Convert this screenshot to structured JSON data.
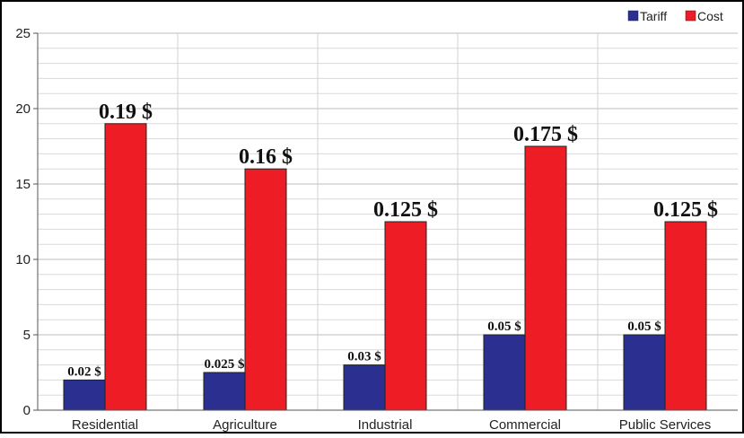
{
  "chart_data": {
    "type": "bar",
    "categories": [
      "Residential",
      "Agriculture",
      "Industrial",
      "Commercial",
      "Public Services"
    ],
    "series": [
      {
        "name": "Tariff",
        "color": "#2B2F8F",
        "values": [
          2,
          2.5,
          3,
          5,
          5
        ],
        "labels": [
          "0.02 $",
          "0.025 $",
          "0.03 $",
          "0.05 $",
          "0.05 $"
        ]
      },
      {
        "name": "Cost",
        "color": "#EE1C25",
        "values": [
          19,
          16,
          12.5,
          17.5,
          12.5
        ],
        "labels": [
          "0.19 $",
          "0.16 $",
          "0.125 $",
          "0.175 $",
          "0.125 $"
        ]
      }
    ],
    "ylim": [
      0,
      25
    ],
    "yticks": [
      0,
      5,
      10,
      15,
      20,
      25
    ],
    "minor_step": 1,
    "grid": true,
    "legend_position": "top-right",
    "title": "",
    "xlabel": "",
    "ylabel": ""
  }
}
